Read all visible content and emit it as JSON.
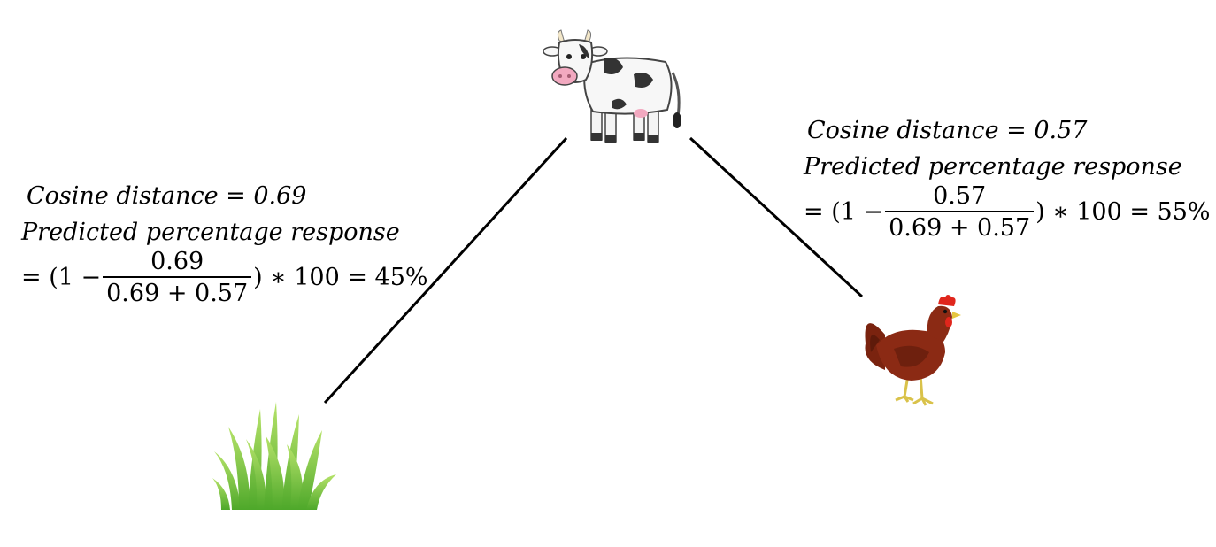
{
  "left": {
    "distance_line": "Cosine distance = 0.69",
    "predicted_label": "Predicted percentage response",
    "formula_prefix": "= (1 −",
    "frac_num": "0.69",
    "frac_den": "0.69 + 0.57",
    "formula_suffix": ") ∗ 100 = 45%"
  },
  "right": {
    "distance_line": "Cosine distance = 0.57",
    "predicted_label": "Predicted percentage response",
    "formula_prefix": "= (1 −",
    "frac_num": "0.57",
    "frac_den": "0.69 + 0.57",
    "formula_suffix": ") ∗ 100 = 55%"
  },
  "icons": {
    "cow": "cow-icon",
    "grass": "grass-icon",
    "chicken": "chicken-icon"
  },
  "colors": {
    "line": "#000000",
    "grass": "#7ac943",
    "chicken": "#8b2a14",
    "comb": "#e0261c"
  }
}
